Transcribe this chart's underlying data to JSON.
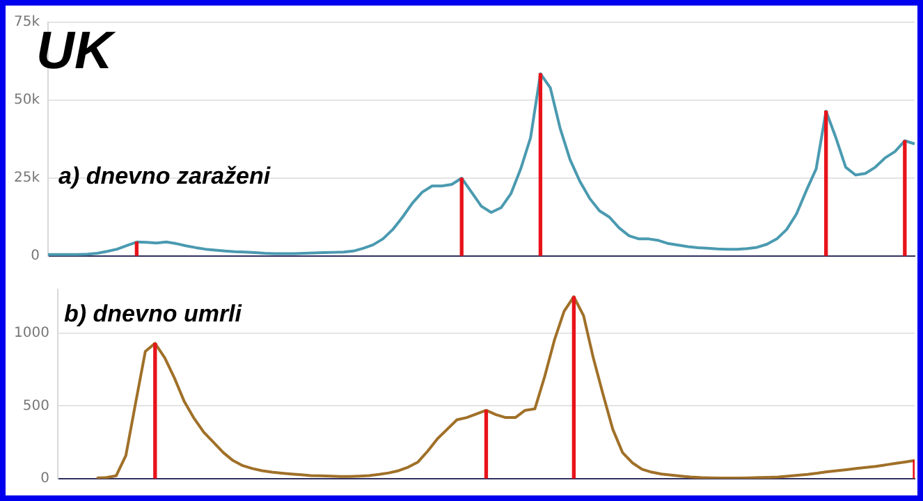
{
  "chart_data": [
    {
      "type": "line",
      "title": "UK",
      "subtitle": "a) dnevno zaraženi",
      "categories": [
        null,
        null,
        null,
        null,
        null,
        null,
        null,
        null,
        null,
        null,
        null,
        null,
        null,
        null,
        null,
        null,
        null,
        null,
        null,
        null,
        null,
        null,
        null,
        null,
        null,
        null,
        null,
        null,
        null,
        null,
        null,
        null,
        null,
        null,
        null,
        null,
        null,
        null,
        null,
        null,
        null,
        null,
        null,
        null,
        null,
        null,
        null,
        null,
        null,
        null,
        null,
        null,
        null,
        null,
        null,
        null,
        null,
        null,
        null,
        null,
        null,
        null,
        null,
        null,
        null,
        null,
        null,
        null,
        null,
        null,
        null,
        null,
        null,
        null,
        null,
        null,
        null,
        null,
        null,
        null,
        null,
        null,
        null,
        null,
        null,
        null,
        null,
        null,
        null
      ],
      "series": [
        {
          "color": "#4a9ab0",
          "values": [
            500,
            500,
            500,
            500,
            600,
            900,
            1500,
            2200,
            3400,
            4500,
            4400,
            4200,
            4500,
            4000,
            3300,
            2700,
            2200,
            1900,
            1600,
            1400,
            1300,
            1100,
            900,
            800,
            800,
            800,
            900,
            1000,
            1100,
            1200,
            1300,
            1600,
            2500,
            3600,
            5500,
            8500,
            12500,
            17000,
            20500,
            22500,
            22500,
            23000,
            25000,
            20500,
            16000,
            14000,
            15500,
            20000,
            28000,
            38000,
            58500,
            54000,
            41000,
            31000,
            24000,
            18500,
            14500,
            12500,
            9000,
            6500,
            5500,
            5500,
            5000,
            4000,
            3500,
            3000,
            2700,
            2500,
            2300,
            2200,
            2200,
            2400,
            2800,
            3800,
            5500,
            8500,
            13500,
            21000,
            28000,
            46500,
            38000,
            28500,
            26000,
            26500,
            28500,
            31500,
            33500,
            37000,
            36000
          ]
        },
        {
          "type": "bar",
          "color": "#e8131a",
          "values": [
            null,
            null,
            null,
            null,
            null,
            null,
            null,
            null,
            null,
            4500,
            null,
            null,
            null,
            null,
            null,
            null,
            null,
            null,
            null,
            null,
            null,
            null,
            null,
            null,
            null,
            null,
            null,
            null,
            null,
            null,
            null,
            null,
            null,
            null,
            null,
            null,
            null,
            null,
            null,
            null,
            null,
            null,
            25000,
            null,
            null,
            null,
            null,
            null,
            null,
            null,
            58500,
            null,
            null,
            null,
            null,
            null,
            null,
            null,
            null,
            null,
            null,
            null,
            null,
            null,
            null,
            null,
            null,
            null,
            null,
            null,
            null,
            null,
            null,
            null,
            null,
            null,
            null,
            null,
            null,
            46500,
            null,
            null,
            null,
            null,
            null,
            null,
            null,
            37000,
            null
          ]
        }
      ],
      "ylim": [
        0,
        75000
      ],
      "yticks": [
        {
          "value": 0,
          "label": "0"
        },
        {
          "value": 25000,
          "label": "25k"
        },
        {
          "value": 50000,
          "label": "50k"
        },
        {
          "value": 75000,
          "label": "75k"
        }
      ],
      "grid": "y",
      "legend": false,
      "tick_labels": "y"
    },
    {
      "type": "line",
      "title": "b) dnevno umrli",
      "categories": [
        null,
        null,
        null,
        null,
        null,
        null,
        null,
        null,
        null,
        null,
        null,
        null,
        null,
        null,
        null,
        null,
        null,
        null,
        null,
        null,
        null,
        null,
        null,
        null,
        null,
        null,
        null,
        null,
        null,
        null,
        null,
        null,
        null,
        null,
        null,
        null,
        null,
        null,
        null,
        null,
        null,
        null,
        null,
        null,
        null,
        null,
        null,
        null,
        null,
        null,
        null,
        null,
        null,
        null,
        null,
        null,
        null,
        null,
        null,
        null,
        null,
        null,
        null,
        null,
        null,
        null,
        null,
        null,
        null,
        null,
        null,
        null,
        null,
        null,
        null,
        null,
        null,
        null,
        null,
        null,
        null,
        null,
        null,
        null,
        null,
        null,
        null,
        null,
        null
      ],
      "series": [
        {
          "color": "#a07028",
          "values": [
            null,
            null,
            null,
            null,
            5,
            8,
            20,
            160,
            520,
            875,
            930,
            830,
            690,
            530,
            415,
            320,
            250,
            180,
            125,
            90,
            70,
            55,
            45,
            38,
            32,
            27,
            22,
            20,
            18,
            16,
            15,
            18,
            22,
            30,
            40,
            55,
            80,
            115,
            190,
            275,
            340,
            405,
            420,
            445,
            470,
            440,
            420,
            420,
            470,
            480,
            700,
            950,
            1150,
            1250,
            1120,
            830,
            580,
            340,
            180,
            110,
            65,
            45,
            32,
            25,
            18,
            12,
            8,
            6,
            5,
            5,
            5,
            6,
            8,
            10,
            12,
            18,
            24,
            30,
            38,
            48,
            55,
            62,
            70,
            78,
            85,
            95,
            105,
            115,
            125
          ]
        },
        {
          "type": "bar",
          "color": "#e8131a",
          "values": [
            null,
            null,
            null,
            null,
            null,
            null,
            null,
            null,
            null,
            null,
            930,
            null,
            null,
            null,
            null,
            null,
            null,
            null,
            null,
            null,
            null,
            null,
            null,
            null,
            null,
            null,
            null,
            null,
            null,
            null,
            null,
            null,
            null,
            null,
            null,
            null,
            null,
            null,
            null,
            null,
            null,
            null,
            null,
            null,
            470,
            null,
            null,
            null,
            null,
            null,
            null,
            null,
            null,
            1250,
            null,
            null,
            null,
            null,
            null,
            null,
            null,
            null,
            null,
            null,
            null,
            null,
            null,
            null,
            null,
            null,
            null,
            null,
            null,
            null,
            null,
            null,
            null,
            null,
            null,
            null,
            null,
            null,
            null,
            null,
            null,
            null,
            null,
            null,
            125
          ]
        }
      ],
      "ylim": [
        0,
        1300
      ],
      "yticks": [
        0,
        500,
        1000
      ],
      "grid": "y",
      "legend": false,
      "tick_labels": "y"
    }
  ]
}
